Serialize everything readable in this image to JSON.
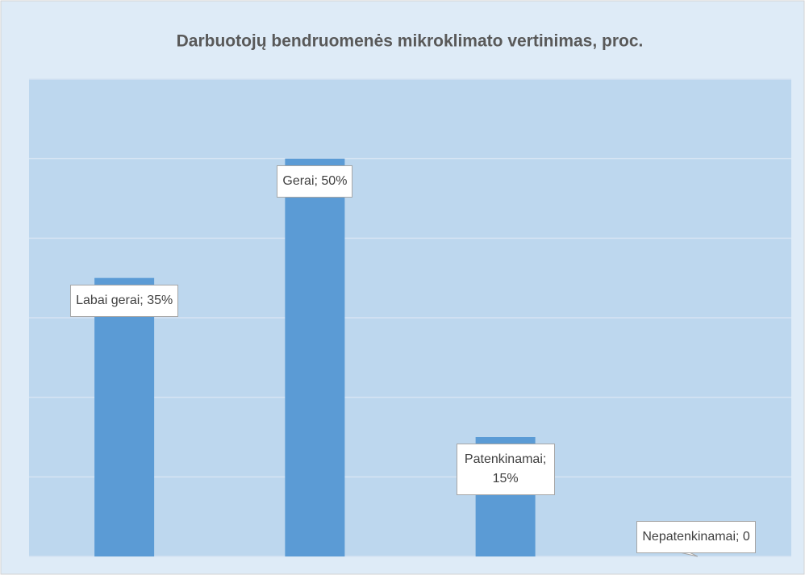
{
  "chart_data": {
    "type": "bar",
    "title": "Darbuotojų bendruomenės mikroklimato vertinimas, proc.",
    "categories": [
      "Labai gerai",
      "Gerai",
      "Patenkinamai",
      "Nepatenkinamai"
    ],
    "values": [
      35,
      50,
      15,
      0
    ],
    "value_labels": [
      "Labai gerai; 35%",
      "Gerai; 50%",
      "Patenkinamai; 15%",
      "Nepatenkinamai; 0"
    ],
    "color": "#5b9bd5",
    "ylim": [
      0,
      60
    ],
    "yticks": [
      0,
      10,
      20,
      30,
      40,
      50,
      60
    ],
    "grid": true
  }
}
